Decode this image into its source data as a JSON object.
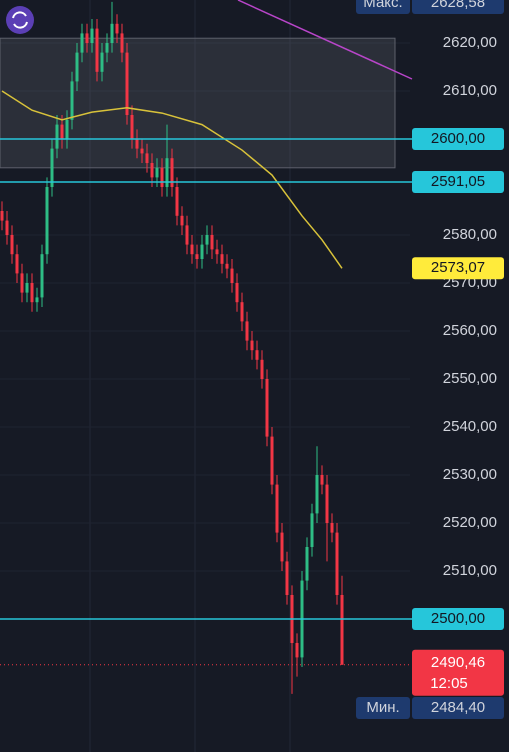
{
  "chart_data": {
    "type": "candlestick",
    "up_color": "#2ebd85",
    "down_color": "#f23645",
    "ylim": [
      2472.29,
      2628.96
    ],
    "yticks": [
      {
        "value": 2620,
        "label": "2620,00"
      },
      {
        "value": 2610,
        "label": "2610,00"
      },
      {
        "value": 2580,
        "label": "2580,00"
      },
      {
        "value": 2570,
        "label": "2570,00"
      },
      {
        "value": 2560,
        "label": "2560,00"
      },
      {
        "value": 2550,
        "label": "2550,00"
      },
      {
        "value": 2540,
        "label": "2540,00"
      },
      {
        "value": 2530,
        "label": "2530,00"
      },
      {
        "value": 2520,
        "label": "2520,00"
      },
      {
        "value": 2510,
        "label": "2510,00"
      }
    ],
    "open": [
      2585,
      2583,
      2580,
      2576,
      2572,
      2568,
      2570,
      2566,
      2567,
      2576,
      2590,
      2598,
      2603,
      2600,
      2604,
      2612,
      2618,
      2622,
      2620,
      2623,
      2614,
      2618,
      2620,
      2624,
      2622,
      2618,
      2605,
      2600,
      2598,
      2597,
      2595,
      2592,
      2594,
      2590,
      2596,
      2590,
      2584,
      2582,
      2578,
      2576,
      2575,
      2578,
      2580,
      2577,
      2576,
      2574,
      2573,
      2570,
      2566,
      2562,
      2558,
      2556,
      2554,
      2550,
      2538,
      2528,
      2518,
      2512,
      2505,
      2495,
      2492,
      2508,
      2515,
      2522,
      2530,
      2528,
      2520,
      2518,
      2505
    ],
    "high": [
      2587,
      2585,
      2582,
      2578,
      2574,
      2572,
      2572,
      2569,
      2578,
      2592,
      2600,
      2605,
      2605,
      2606,
      2614,
      2620,
      2624,
      2624,
      2625,
      2625,
      2620,
      2622,
      2628.58,
      2626,
      2624,
      2620,
      2607,
      2602,
      2600,
      2599,
      2597,
      2596,
      2596,
      2603,
      2598,
      2592,
      2586,
      2584,
      2580,
      2578,
      2580,
      2582,
      2582,
      2579,
      2578,
      2576,
      2575,
      2572,
      2568,
      2564,
      2560,
      2558,
      2556,
      2552,
      2540,
      2530,
      2520,
      2514,
      2507,
      2497,
      2510,
      2517,
      2524,
      2536,
      2532,
      2530,
      2522,
      2520,
      2509
    ],
    "low": [
      2581,
      2578,
      2574,
      2570,
      2566,
      2566,
      2564,
      2564,
      2565,
      2574,
      2588,
      2596,
      2598,
      2598,
      2602,
      2610,
      2616,
      2618,
      2618,
      2612,
      2612,
      2616,
      2618,
      2620,
      2616,
      2603,
      2598,
      2596,
      2595,
      2593,
      2590,
      2590,
      2588,
      2588,
      2588,
      2582,
      2580,
      2576,
      2574,
      2573,
      2573,
      2576,
      2575,
      2574,
      2572,
      2571,
      2568,
      2564,
      2560,
      2556,
      2554,
      2552,
      2548,
      2536,
      2526,
      2516,
      2510,
      2503,
      2484.4,
      2488,
      2490,
      2506,
      2513,
      2520,
      2526,
      2512,
      2516,
      2503,
      2490.46
    ],
    "close": [
      2583,
      2580,
      2576,
      2572,
      2568,
      2570,
      2566,
      2567,
      2576,
      2590,
      2598,
      2603,
      2600,
      2604,
      2612,
      2618,
      2622,
      2620,
      2623,
      2614,
      2618,
      2620,
      2624,
      2622,
      2618,
      2605,
      2600,
      2598,
      2597,
      2595,
      2592,
      2594,
      2590,
      2596,
      2590,
      2584,
      2582,
      2578,
      2576,
      2575,
      2578,
      2580,
      2577,
      2576,
      2574,
      2573,
      2570,
      2566,
      2562,
      2558,
      2556,
      2554,
      2550,
      2538,
      2528,
      2518,
      2512,
      2505,
      2495,
      2492,
      2508,
      2515,
      2522,
      2530,
      2528,
      2520,
      2518,
      2505,
      2490.46
    ],
    "ma": {
      "color": "#d8c23a",
      "x": [
        0,
        6,
        12,
        18,
        25,
        32,
        40,
        48,
        54,
        60,
        64,
        68
      ],
      "values": [
        2610,
        2606,
        2604,
        2605.6,
        2606.5,
        2605.4,
        2603,
        2597.7,
        2592.5,
        2584,
        2579,
        2573.07
      ],
      "last_label": "2573,07",
      "label_color": "#ffeb3b"
    },
    "zone": [
      2594,
      2621
    ],
    "levels": [
      {
        "value": 2600,
        "label": "2600,00"
      },
      {
        "value": 2591.05,
        "label": "2591,05"
      },
      {
        "value": 2500,
        "label": "2500,00"
      }
    ],
    "level_color": "#26c6da",
    "max": {
      "label": "Макс.",
      "value": 2628.58,
      "value_label": "2628,58"
    },
    "min": {
      "label": "Мин.",
      "value": 2484.4,
      "value_label": "2484,40"
    },
    "last": {
      "value": 2490.46,
      "label": "2490,46",
      "countdown": "12:05"
    }
  }
}
